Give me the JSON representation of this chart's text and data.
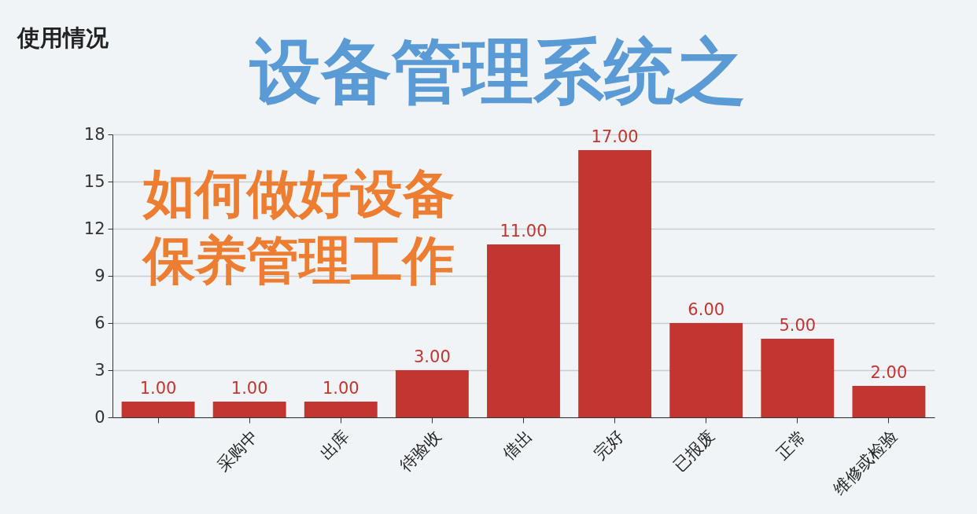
{
  "chart_data": {
    "type": "bar",
    "title": "使用情况",
    "categories": [
      null,
      "采购中",
      "出库",
      "待验收",
      "借出",
      "完好",
      "已报废",
      "正常",
      "维修或检验"
    ],
    "values": [
      1,
      1,
      1,
      3,
      11,
      17,
      6,
      5,
      2
    ],
    "value_labels": [
      "1.00",
      "1.00",
      "1.00",
      "3.00",
      "11.00",
      "17.00",
      "6.00",
      "5.00",
      "2.00"
    ],
    "color": "#c23531",
    "ylim": [
      0,
      18
    ],
    "yticks": [
      0,
      3,
      6,
      9,
      12,
      15,
      18
    ],
    "grid": "y",
    "annotations": [
      "设备管理系统之",
      "如何做好设备",
      "保养管理工作"
    ]
  }
}
